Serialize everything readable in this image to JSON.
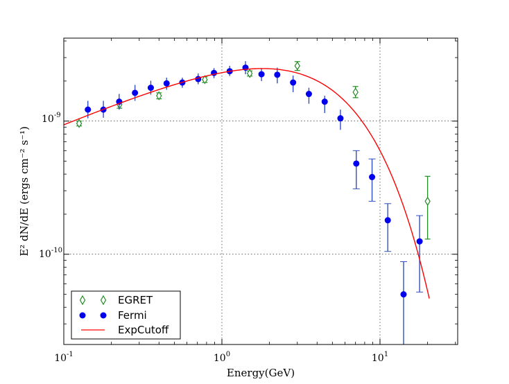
{
  "chart_data": {
    "type": "scatter",
    "title": "",
    "xlabel": "Energy(GeV)",
    "ylabel": "E² dN/dE (ergs cm⁻² s⁻¹)",
    "x_scale": "log",
    "y_scale": "log",
    "xlim": [
      0.1,
      31
    ],
    "ylim": [
      2.1e-11,
      4.2e-09
    ],
    "grid": true,
    "x_ticks": [
      {
        "value": 0.1,
        "base": "10",
        "exp": "-1"
      },
      {
        "value": 1,
        "base": "10",
        "exp": "0"
      },
      {
        "value": 10,
        "base": "10",
        "exp": "1"
      }
    ],
    "y_ticks": [
      {
        "value": 1e-09,
        "base": "10",
        "exp": "-9"
      },
      {
        "value": 1e-10,
        "base": "10",
        "exp": "-10"
      }
    ],
    "legend": {
      "position": "lower-left",
      "entries": [
        "EGRET",
        "Fermi",
        "ExpCutoff"
      ]
    },
    "series": [
      {
        "name": "EGRET",
        "marker": "open-diamond",
        "color": "#228b22",
        "points": [
          {
            "x": 0.125,
            "y": 9.6e-10,
            "ylo": 9.2e-10,
            "yhi": 1e-09
          },
          {
            "x": 0.225,
            "y": 1.33e-09,
            "ylo": 1.25e-09,
            "yhi": 1.41e-09
          },
          {
            "x": 0.4,
            "y": 1.55e-09,
            "ylo": 1.47e-09,
            "yhi": 1.63e-09
          },
          {
            "x": 0.78,
            "y": 2.05e-09,
            "ylo": 1.95e-09,
            "yhi": 2.15e-09
          },
          {
            "x": 1.5,
            "y": 2.28e-09,
            "ylo": 2.18e-09,
            "yhi": 2.38e-09
          },
          {
            "x": 3.0,
            "y": 2.6e-09,
            "ylo": 2.4e-09,
            "yhi": 2.8e-09
          },
          {
            "x": 7.0,
            "y": 1.65e-09,
            "ylo": 1.5e-09,
            "yhi": 1.82e-09
          },
          {
            "x": 20.0,
            "y": 2.5e-10,
            "ylo": 1.3e-10,
            "yhi": 3.85e-10
          }
        ]
      },
      {
        "name": "Fermi",
        "marker": "filled-circle",
        "color": "#0000ee",
        "errcolor": "#3050c0",
        "points": [
          {
            "x": 0.142,
            "y": 1.22e-09,
            "ylo": 1.05e-09,
            "yhi": 1.42e-09
          },
          {
            "x": 0.178,
            "y": 1.22e-09,
            "ylo": 1.06e-09,
            "yhi": 1.42e-09
          },
          {
            "x": 0.224,
            "y": 1.4e-09,
            "ylo": 1.22e-09,
            "yhi": 1.6e-09
          },
          {
            "x": 0.282,
            "y": 1.63e-09,
            "ylo": 1.42e-09,
            "yhi": 1.87e-09
          },
          {
            "x": 0.355,
            "y": 1.78e-09,
            "ylo": 1.58e-09,
            "yhi": 2.01e-09
          },
          {
            "x": 0.447,
            "y": 1.92e-09,
            "ylo": 1.72e-09,
            "yhi": 2.12e-09
          },
          {
            "x": 0.562,
            "y": 1.95e-09,
            "ylo": 1.78e-09,
            "yhi": 2.12e-09
          },
          {
            "x": 0.708,
            "y": 2.07e-09,
            "ylo": 1.89e-09,
            "yhi": 2.28e-09
          },
          {
            "x": 0.891,
            "y": 2.3e-09,
            "ylo": 2.1e-09,
            "yhi": 2.5e-09
          },
          {
            "x": 1.12,
            "y": 2.37e-09,
            "ylo": 2.18e-09,
            "yhi": 2.6e-09
          },
          {
            "x": 1.41,
            "y": 2.52e-09,
            "ylo": 2.25e-09,
            "yhi": 2.82e-09
          },
          {
            "x": 1.78,
            "y": 2.25e-09,
            "ylo": 2e-09,
            "yhi": 2.5e-09
          },
          {
            "x": 2.24,
            "y": 2.23e-09,
            "ylo": 1.92e-09,
            "yhi": 2.52e-09
          },
          {
            "x": 2.82,
            "y": 1.95e-09,
            "ylo": 1.65e-09,
            "yhi": 2.2e-09
          },
          {
            "x": 3.55,
            "y": 1.6e-09,
            "ylo": 1.35e-09,
            "yhi": 1.78e-09
          },
          {
            "x": 4.47,
            "y": 1.4e-09,
            "ylo": 1.15e-09,
            "yhi": 1.55e-09
          },
          {
            "x": 5.62,
            "y": 1.05e-09,
            "ylo": 8.6e-10,
            "yhi": 1.22e-09
          },
          {
            "x": 7.08,
            "y": 4.8e-10,
            "ylo": 3.1e-10,
            "yhi": 6e-10
          },
          {
            "x": 8.91,
            "y": 3.8e-10,
            "ylo": 2.5e-10,
            "yhi": 5.2e-10
          },
          {
            "x": 11.2,
            "y": 1.8e-10,
            "ylo": 1.05e-10,
            "yhi": 2.4e-10
          },
          {
            "x": 14.1,
            "y": 5e-11,
            "ylo": 1e-11,
            "yhi": 8.8e-11
          },
          {
            "x": 17.8,
            "y": 1.25e-10,
            "ylo": 5.2e-11,
            "yhi": 1.95e-10
          }
        ]
      },
      {
        "name": "ExpCutoff",
        "type": "line",
        "color": "#ff0000",
        "model": {
          "norm": 3.05e-09,
          "index": 1.5,
          "cutoff": 3.6,
          "xmin": 0.1,
          "xmax": 20.5
        }
      }
    ]
  }
}
